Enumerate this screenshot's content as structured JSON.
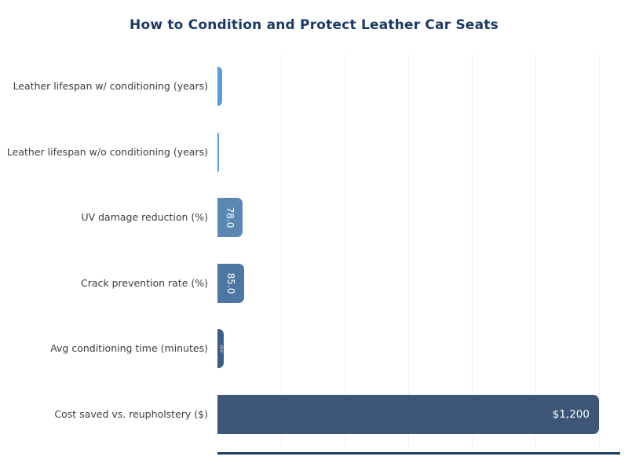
{
  "title": "How to Condition and Protect Leather Car Seats",
  "chart_data": {
    "type": "bar",
    "orientation": "horizontal",
    "title": "How to Condition and Protect Leather Car Seats",
    "categories": [
      "Leather lifespan w/ conditioning (years)",
      "Leather lifespan w/o conditioning (years)",
      "UV damage reduction (%)",
      "Crack prevention rate (%)",
      "Avg conditioning time (minutes)",
      "Cost saved vs. reupholstery ($)"
    ],
    "values": [
      15,
      5,
      78,
      85,
      20,
      1200
    ],
    "bar_labels": [
      "",
      "",
      "78.0",
      "85.0",
      "20.0",
      "$1,200"
    ],
    "bar_colors": [
      "#5b9cd6",
      "#5b9cd6",
      "#5d87b3",
      "#4e76a2",
      "#3e5d85",
      "#3d5677"
    ],
    "xlabel": "",
    "ylabel": "",
    "xlim": [
      0,
      1265
    ],
    "grid": true,
    "gridline_step": 200,
    "gridline_color": "#eef0f3",
    "legend_position": "none",
    "title_color": "#1b3a63",
    "axis_line_color": "#1b3a63",
    "category_label_color": "#3d3d3d",
    "value_label_color": "#ffffff"
  }
}
